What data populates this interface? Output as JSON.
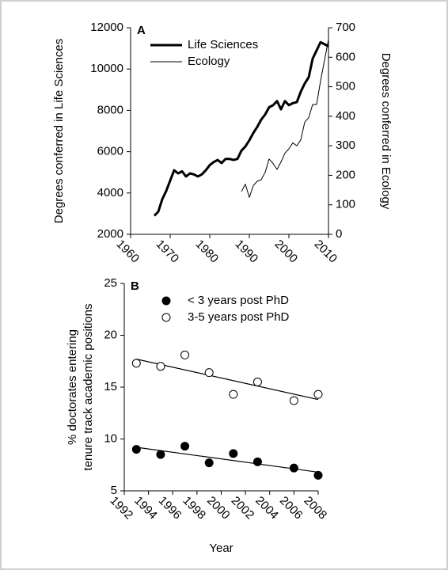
{
  "chart_data": [
    {
      "type": "line",
      "panel": "A",
      "legend": "upper left",
      "ylabel": "Degrees conferred in Life Sciences",
      "y2label": "Degrees conferred in Ecology",
      "x": [
        1966,
        1967,
        1968,
        1969,
        1970,
        1971,
        1972,
        1973,
        1974,
        1975,
        1976,
        1977,
        1978,
        1979,
        1980,
        1981,
        1982,
        1983,
        1984,
        1985,
        1986,
        1987,
        1988,
        1989,
        1990,
        1991,
        1992,
        1993,
        1994,
        1995,
        1996,
        1997,
        1998,
        1999,
        2000,
        2001,
        2002,
        2003,
        2004,
        2005,
        2006,
        2007,
        2008,
        2009,
        2010
      ],
      "xlim": [
        1960,
        2010
      ],
      "xticks": [
        1960,
        1970,
        1980,
        1990,
        2000,
        2010
      ],
      "ylim": [
        2000,
        12000
      ],
      "yticks": [
        2000,
        4000,
        6000,
        8000,
        10000,
        12000
      ],
      "y2lim": [
        0,
        700
      ],
      "y2ticks": [
        0,
        100,
        200,
        300,
        400,
        500,
        600,
        700
      ],
      "series": [
        {
          "name": "Life Sciences",
          "color": "#000000",
          "values": [
            2900,
            3100,
            3700,
            4100,
            4600,
            5100,
            4950,
            5050,
            4800,
            4950,
            4900,
            4800,
            4900,
            5100,
            5350,
            5500,
            5600,
            5450,
            5650,
            5650,
            5600,
            5650,
            6050,
            6250,
            6550,
            6900,
            7200,
            7550,
            7800,
            8150,
            8250,
            8450,
            8050,
            8450,
            8250,
            8350,
            8400,
            8900,
            9300,
            9600,
            10500,
            10900,
            11300,
            11200,
            11100
          ]
        },
        {
          "name": "Ecology",
          "color": "#000000",
          "axis": "y2",
          "values": [
            null,
            null,
            null,
            null,
            null,
            null,
            null,
            null,
            null,
            null,
            null,
            null,
            null,
            null,
            null,
            null,
            null,
            null,
            null,
            null,
            null,
            null,
            145,
            170,
            125,
            165,
            180,
            185,
            210,
            255,
            240,
            220,
            245,
            275,
            290,
            310,
            300,
            320,
            380,
            395,
            440,
            440,
            520,
            590,
            660
          ]
        }
      ]
    },
    {
      "type": "scatter",
      "panel": "B",
      "legend": "upper left",
      "ylabel": [
        "% doctorates entering",
        "tenure track academic positions"
      ],
      "xlabel": "Year",
      "x": [
        1993,
        1995,
        1997,
        1999,
        2001,
        2003,
        2006,
        2008
      ],
      "xlim": [
        1992,
        2008
      ],
      "xticks": [
        1992,
        1994,
        1996,
        1998,
        2000,
        2002,
        2004,
        2006,
        2008
      ],
      "ylim": [
        5,
        25
      ],
      "yticks": [
        5,
        10,
        15,
        20,
        25
      ],
      "series": [
        {
          "name": "< 3 years post PhD",
          "color": "#000000",
          "fill": "#000000",
          "values": [
            9.0,
            8.5,
            9.3,
            7.7,
            8.6,
            7.8,
            7.2,
            6.5
          ],
          "trend": [
            9.2,
            6.8
          ]
        },
        {
          "name": "3-5 years post PhD",
          "color": "#000000",
          "fill": "#ffffff",
          "values": [
            17.3,
            17.0,
            18.1,
            16.4,
            14.3,
            15.5,
            13.7,
            14.3
          ],
          "trend": [
            17.7,
            13.8
          ]
        }
      ]
    }
  ]
}
